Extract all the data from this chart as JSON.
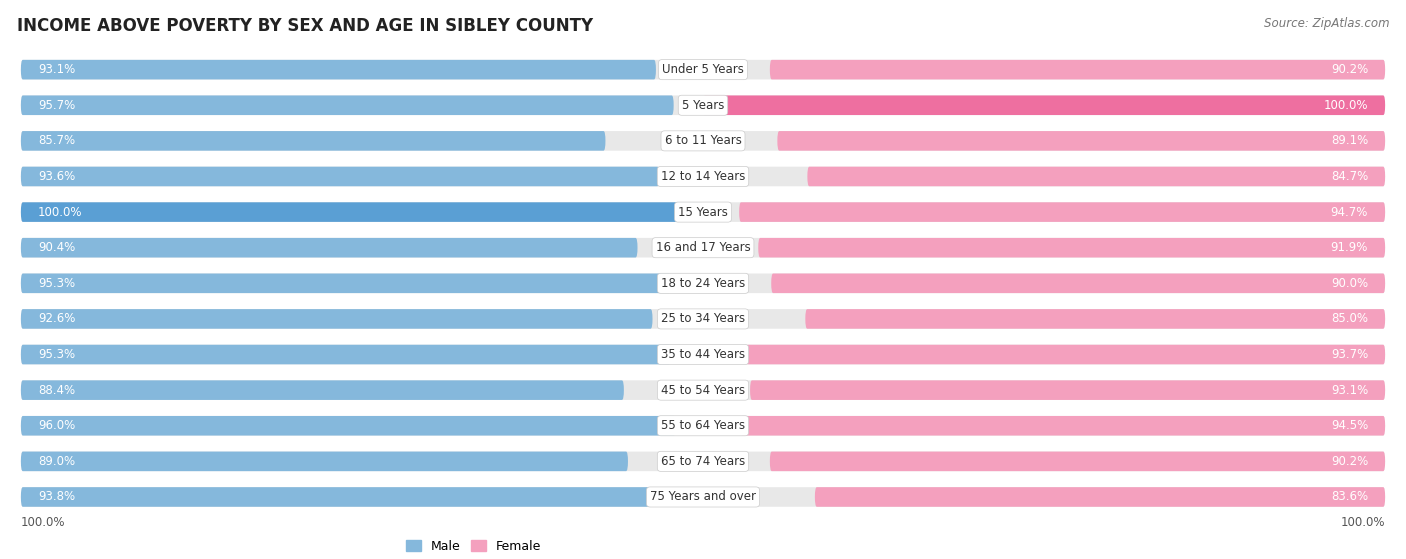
{
  "title": "INCOME ABOVE POVERTY BY SEX AND AGE IN SIBLEY COUNTY",
  "source": "Source: ZipAtlas.com",
  "categories": [
    "Under 5 Years",
    "5 Years",
    "6 to 11 Years",
    "12 to 14 Years",
    "15 Years",
    "16 and 17 Years",
    "18 to 24 Years",
    "25 to 34 Years",
    "35 to 44 Years",
    "45 to 54 Years",
    "55 to 64 Years",
    "65 to 74 Years",
    "75 Years and over"
  ],
  "male_values": [
    93.1,
    95.7,
    85.7,
    93.6,
    100.0,
    90.4,
    95.3,
    92.6,
    95.3,
    88.4,
    96.0,
    89.0,
    93.8
  ],
  "female_values": [
    90.2,
    100.0,
    89.1,
    84.7,
    94.7,
    91.9,
    90.0,
    85.0,
    93.7,
    93.1,
    94.5,
    90.2,
    83.6
  ],
  "male_color": "#85B8DC",
  "male_color_full": "#5A9FD4",
  "female_color": "#F4A0BE",
  "female_color_full": "#EE6FA0",
  "bar_bg_color": "#E8E8E8",
  "background_color": "#FFFFFF",
  "title_fontsize": 12,
  "label_fontsize": 8.5,
  "value_fontsize": 8.5,
  "max_value": 100.0,
  "legend_male": "Male",
  "legend_female": "Female"
}
